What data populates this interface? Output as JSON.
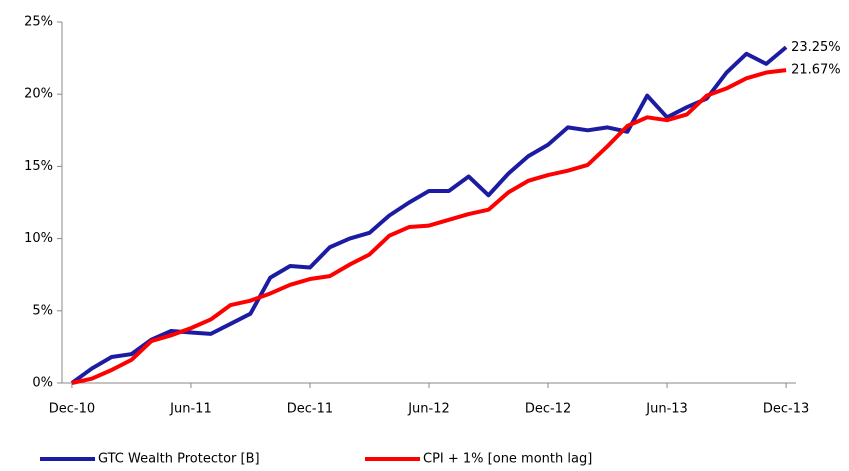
{
  "chart_data": {
    "type": "line",
    "categories": [
      "Dec-10",
      null,
      null,
      null,
      null,
      null,
      "Jun-11",
      null,
      null,
      null,
      null,
      null,
      "Dec-11",
      null,
      null,
      null,
      null,
      null,
      "Jun-12",
      null,
      null,
      null,
      null,
      null,
      "Dec-12",
      null,
      null,
      null,
      null,
      null,
      "Jun-13",
      null,
      null,
      null,
      null,
      null,
      "Dec-13"
    ],
    "series": [
      {
        "name": "GTC Wealth Protector [B]",
        "color": "#1c1ca3",
        "values": [
          0,
          1.0,
          1.8,
          2.0,
          3.0,
          3.6,
          3.5,
          3.4,
          4.1,
          4.8,
          7.3,
          8.1,
          8.0,
          9.4,
          10.0,
          10.4,
          11.6,
          12.5,
          13.3,
          13.3,
          14.3,
          13.0,
          14.5,
          15.7,
          16.5,
          17.7,
          17.5,
          17.7,
          17.4,
          19.9,
          18.4,
          19.1,
          19.7,
          21.5,
          22.8,
          22.1,
          23.25
        ],
        "value_labels": [
          null,
          null,
          null,
          null,
          null,
          null,
          null,
          null,
          null,
          null,
          null,
          null,
          null,
          null,
          null,
          null,
          null,
          null,
          null,
          null,
          null,
          null,
          null,
          null,
          null,
          null,
          null,
          null,
          null,
          null,
          null,
          null,
          null,
          null,
          null,
          null,
          "23.25%"
        ]
      },
      {
        "name": "CPI + 1% [one month lag]",
        "color": "#ff0000",
        "values": [
          0,
          0.3,
          0.9,
          1.6,
          2.9,
          3.3,
          3.8,
          4.4,
          5.4,
          5.7,
          6.2,
          6.8,
          7.2,
          7.4,
          8.2,
          8.9,
          10.2,
          10.8,
          10.9,
          11.3,
          11.7,
          12.0,
          13.2,
          14.0,
          14.4,
          14.7,
          15.1,
          16.4,
          17.8,
          18.4,
          18.2,
          18.6,
          19.9,
          20.4,
          21.1,
          21.5,
          21.67
        ],
        "value_labels": [
          null,
          null,
          null,
          null,
          null,
          null,
          null,
          null,
          null,
          null,
          null,
          null,
          null,
          null,
          null,
          null,
          null,
          null,
          null,
          null,
          null,
          null,
          null,
          null,
          null,
          null,
          null,
          null,
          null,
          null,
          null,
          null,
          null,
          null,
          null,
          null,
          "21.67%"
        ]
      }
    ],
    "ylim": [
      0,
      25
    ],
    "yticks": [
      {
        "value": 0,
        "label": "0%"
      },
      {
        "value": 5,
        "label": "5%"
      },
      {
        "value": 10,
        "label": "10%"
      },
      {
        "value": 15,
        "label": "15%"
      },
      {
        "value": 20,
        "label": "20%"
      },
      {
        "value": 25,
        "label": "25%"
      }
    ]
  }
}
